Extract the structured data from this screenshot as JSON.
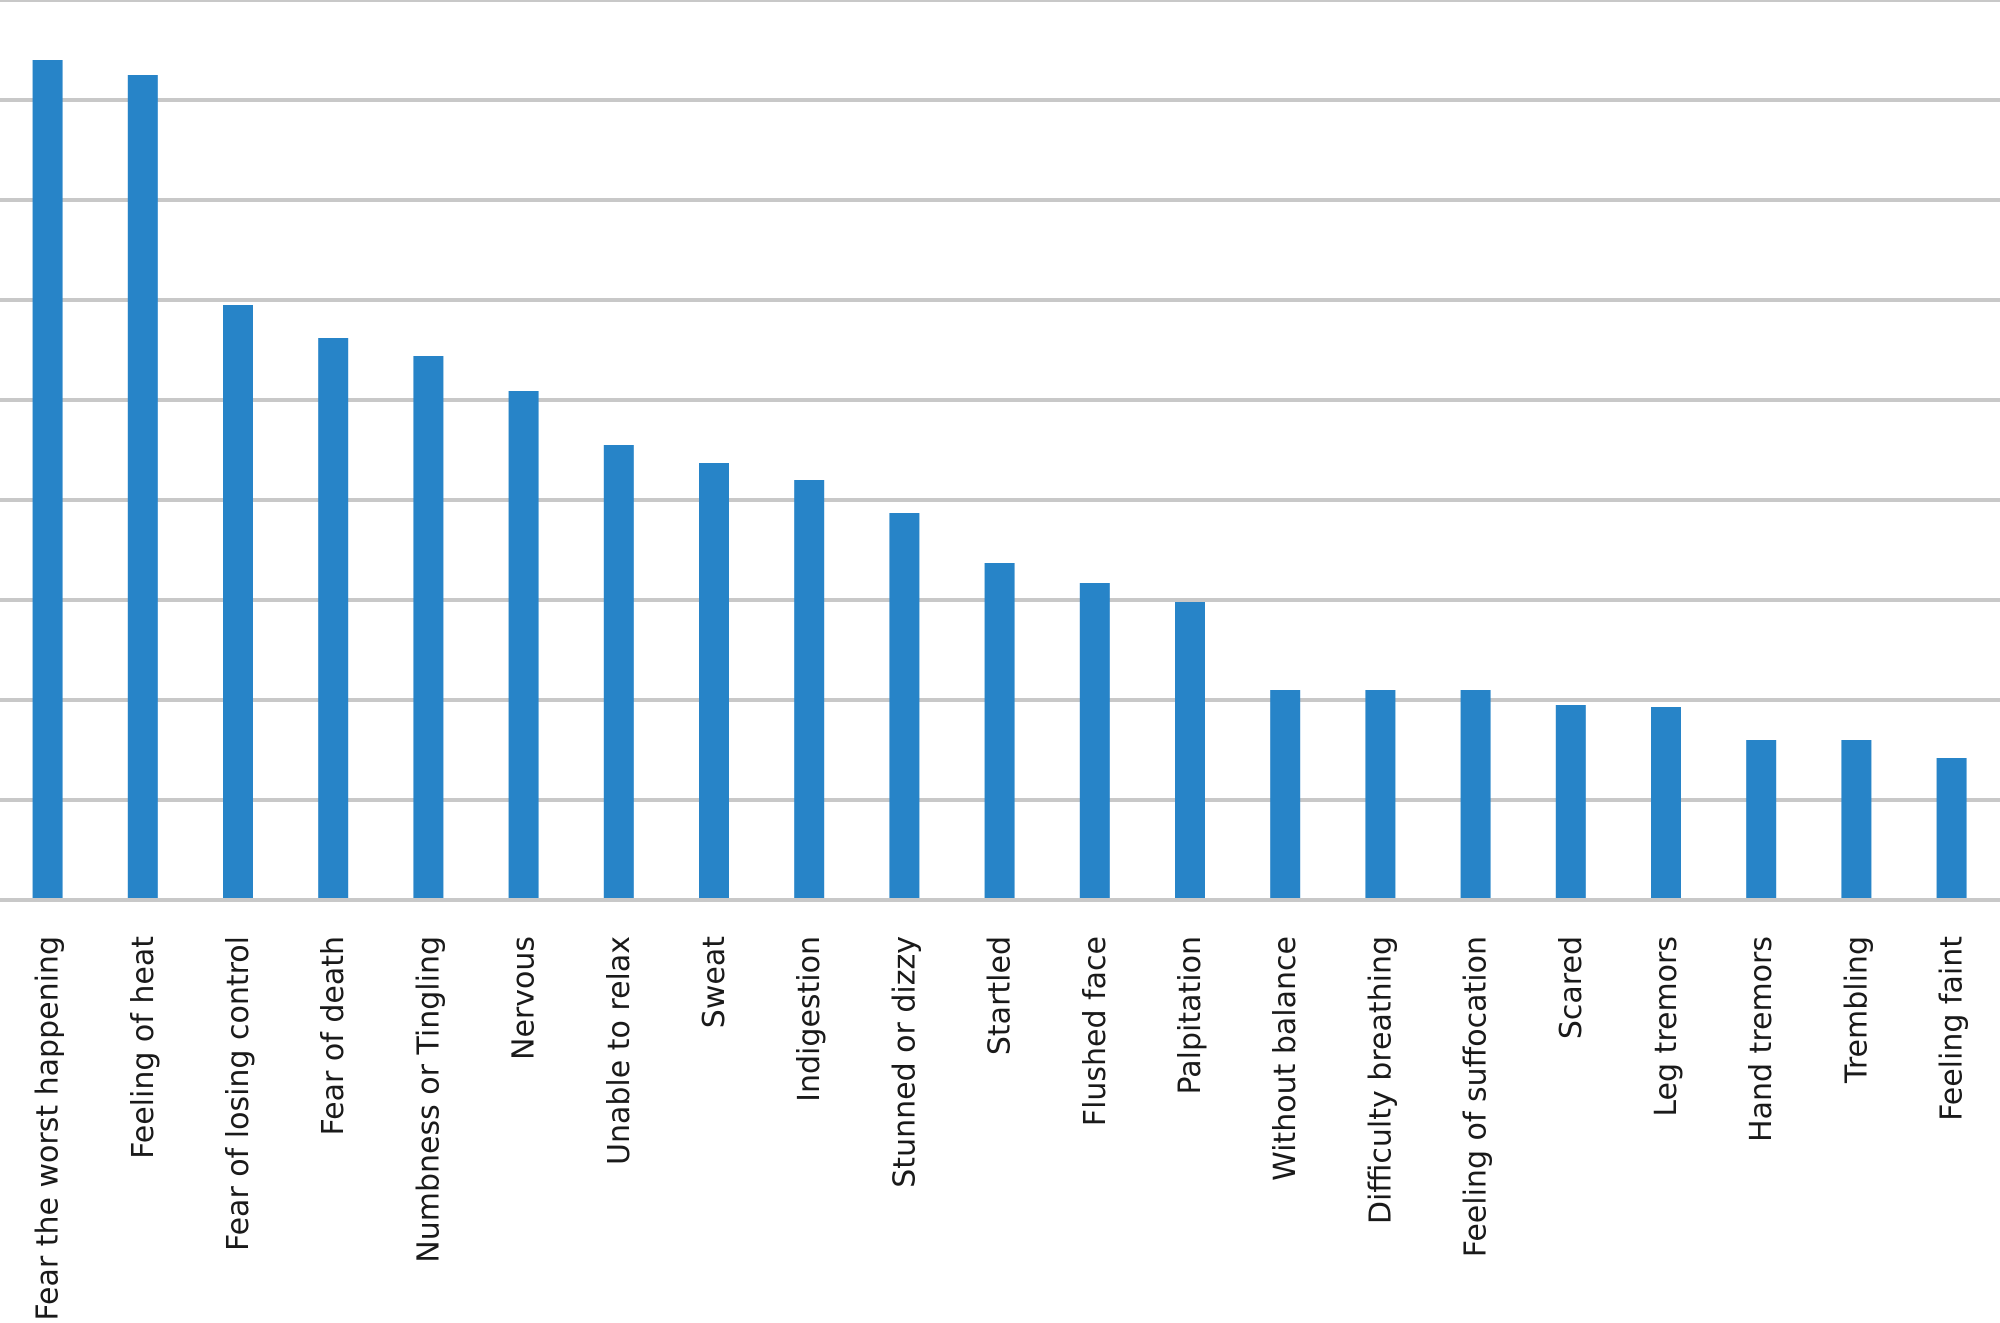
{
  "chart_data": {
    "type": "bar",
    "title": "",
    "xlabel": "",
    "ylabel": "",
    "ylim": [
      0,
      9
    ],
    "grid": true,
    "legend": "none",
    "bar_color": "#2784c8",
    "grid_color": "#c8c8c8",
    "categories": [
      "Fear the worst happening",
      "Feeling of heat",
      "Fear of losing control",
      "Fear of death",
      "Numbness or Tingling",
      "Nervous",
      "Unable to relax",
      "Sweat",
      "Indigestion",
      "Stunned or dizzy",
      "Startled",
      "Flushed face",
      "Palpitation",
      "Without balance",
      "Difficulty breathing",
      "Feeling of suffocation",
      "Scared",
      "Leg tremors",
      "Hand tremors",
      "Trembling",
      "Feeling faint"
    ],
    "values": [
      8.4,
      8.25,
      5.95,
      5.62,
      5.44,
      5.09,
      4.55,
      4.37,
      4.2,
      3.87,
      3.37,
      3.17,
      2.98,
      2.1,
      2.1,
      2.1,
      1.95,
      1.93,
      1.6,
      1.6,
      1.42
    ]
  }
}
